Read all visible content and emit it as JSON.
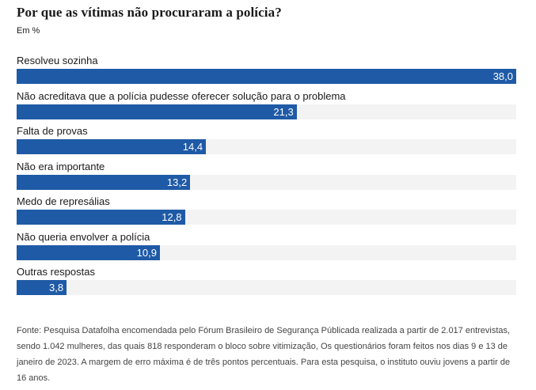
{
  "title": "Por que as vítimas não procuraram a polícia?",
  "subtitle": "Em %",
  "footnote": "Fonte: Pesquisa Datafolha encomendada pelo Fórum Brasileiro de Segurança Públicada realizada a partir de 2.017 entrevistas, sendo 1.042 mulheres, das quais 818 responderam o bloco sobre vitimização, Os questionários foram feitos nos dias 9 e 13 de janeiro de 2023. A margem de erro máxima é de três pontos percentuais. Para esta pesquisa, o instituto ouviu jovens a partir de 16 anos.",
  "colors": {
    "bar": "#1f5aa6",
    "track": "#f3f3f3"
  },
  "chart_data": {
    "type": "bar",
    "orientation": "horizontal",
    "title": "Por que as vítimas não procuraram a polícia?",
    "unit": "Em %",
    "xlim": [
      0,
      38.0
    ],
    "grid": false,
    "categories": [
      "Resolveu sozinha",
      "Não acreditava que a polícia pudesse oferecer solução para o problema",
      "Falta de provas",
      "Não era importante",
      "Medo de represálias",
      "Não queria envolver a polícia",
      "Outras respostas"
    ],
    "values": [
      38.0,
      21.3,
      14.4,
      13.2,
      12.8,
      10.9,
      3.8
    ],
    "value_labels": [
      "38,0",
      "21,3",
      "14,4",
      "13,2",
      "12,8",
      "10,9",
      "3,8"
    ]
  }
}
